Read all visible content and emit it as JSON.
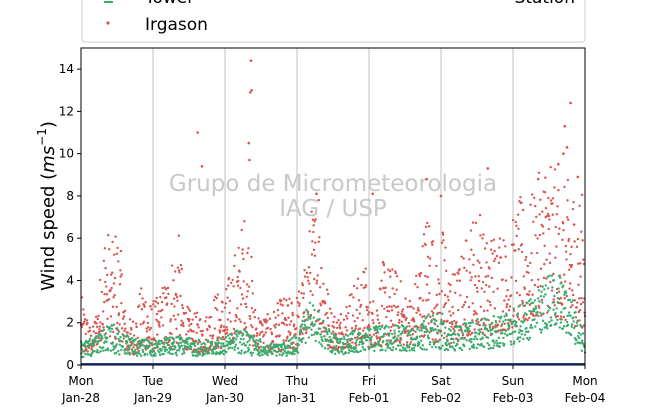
{
  "chart_data": {
    "type": "scatter",
    "title": "",
    "xlabel": "",
    "ylabel": "Wind speed (ms⁻¹)",
    "ylabel_parts": {
      "pre": "Wind speed (",
      "var": "ms",
      "sup": "−1",
      "post": ")"
    },
    "ylim": [
      0,
      15
    ],
    "xlim": [
      "2020-01-27",
      "2020-02-04"
    ],
    "yticks": [
      "0",
      "2",
      "4",
      "6",
      "8",
      "10",
      "12",
      "14"
    ],
    "xticks": [
      {
        "day": "Mon",
        "date": "Jan-28"
      },
      {
        "day": "Tue",
        "date": "Jan-29"
      },
      {
        "day": "Wed",
        "date": "Jan-30"
      },
      {
        "day": "Thu",
        "date": "Jan-31"
      },
      {
        "day": "Fri",
        "date": "Feb-01"
      },
      {
        "day": "Sat",
        "date": "Feb-02"
      },
      {
        "day": "Sun",
        "date": "Feb-03"
      },
      {
        "day": "Mon",
        "date": "Feb-04"
      }
    ],
    "grid": "vertical",
    "legend": {
      "position": "top",
      "entries": [
        "Tower",
        "Station",
        "Irgason"
      ]
    },
    "watermark": [
      "Grupo de Micrometeorologia",
      "IAG / USP"
    ],
    "series": [
      {
        "name": "Irgason",
        "color": "#d9534f",
        "marker": "dot",
        "profile": [
          [
            0.0,
            0.9,
            3.3
          ],
          [
            0.05,
            1.0,
            3.0
          ],
          [
            0.15,
            1.4,
            1.5
          ],
          [
            0.25,
            2.0,
            3.5
          ],
          [
            0.3,
            2.6,
            6.0
          ],
          [
            0.35,
            3.0,
            7.2
          ],
          [
            0.42,
            2.6,
            5.5
          ],
          [
            0.5,
            2.2,
            7.0
          ],
          [
            0.57,
            2.3,
            5.0
          ],
          [
            0.62,
            1.3,
            2.4
          ],
          [
            0.7,
            0.9,
            2.2
          ],
          [
            0.78,
            1.1,
            2.8
          ],
          [
            0.88,
            1.5,
            4.5
          ],
          [
            0.95,
            1.3,
            3.0
          ],
          [
            1.05,
            1.3,
            3.2
          ],
          [
            1.15,
            1.5,
            4.0
          ],
          [
            1.3,
            1.4,
            5.8
          ],
          [
            1.35,
            2.0,
            6.5
          ],
          [
            1.45,
            1.5,
            3.0
          ],
          [
            1.55,
            1.3,
            2.4
          ],
          [
            1.65,
            1.2,
            2.6
          ],
          [
            1.75,
            1.2,
            2.5
          ],
          [
            1.85,
            1.5,
            3.5
          ],
          [
            2.0,
            1.6,
            3.5
          ],
          [
            2.1,
            2.0,
            5.0
          ],
          [
            2.2,
            2.8,
            6.2
          ],
          [
            2.28,
            3.4,
            7.5
          ],
          [
            2.35,
            2.5,
            6.5
          ],
          [
            2.4,
            1.6,
            3.0
          ],
          [
            2.5,
            1.2,
            2.5
          ],
          [
            2.6,
            1.1,
            2.4
          ],
          [
            2.7,
            1.2,
            2.8
          ],
          [
            2.8,
            1.3,
            3.3
          ],
          [
            2.9,
            1.4,
            3.2
          ],
          [
            3.0,
            1.5,
            3.5
          ],
          [
            3.1,
            2.6,
            4.5
          ],
          [
            3.2,
            3.8,
            7.5
          ],
          [
            3.28,
            4.2,
            8.0
          ],
          [
            3.35,
            3.0,
            6.5
          ],
          [
            3.45,
            1.7,
            3.0
          ],
          [
            3.55,
            1.4,
            2.4
          ],
          [
            3.65,
            1.6,
            3.0
          ],
          [
            3.75,
            1.6,
            3.8
          ],
          [
            3.85,
            1.9,
            4.2
          ],
          [
            3.95,
            2.3,
            5.0
          ],
          [
            4.0,
            1.6,
            3.2
          ],
          [
            4.1,
            1.8,
            3.4
          ],
          [
            4.2,
            1.8,
            5.0
          ],
          [
            4.3,
            2.0,
            4.8
          ],
          [
            4.4,
            2.2,
            4.5
          ],
          [
            4.5,
            1.8,
            3.5
          ],
          [
            4.6,
            1.6,
            3.3
          ],
          [
            4.7,
            2.2,
            5.5
          ],
          [
            4.8,
            3.0,
            7.5
          ],
          [
            4.85,
            3.2,
            8.2
          ],
          [
            4.9,
            2.0,
            6.0
          ],
          [
            4.95,
            2.1,
            4.5
          ],
          [
            5.05,
            2.6,
            7.2
          ],
          [
            5.1,
            1.9,
            4.5
          ],
          [
            5.2,
            2.0,
            4.5
          ],
          [
            5.3,
            2.4,
            5.5
          ],
          [
            5.4,
            2.8,
            7.0
          ],
          [
            5.5,
            3.5,
            7.5
          ],
          [
            5.55,
            3.6,
            8.0
          ],
          [
            5.6,
            2.7,
            6.0
          ],
          [
            5.7,
            2.8,
            6.5
          ],
          [
            5.8,
            3.2,
            7.0
          ],
          [
            5.9,
            3.3,
            6.0
          ],
          [
            6.0,
            3.5,
            7.0
          ],
          [
            6.1,
            4.2,
            8.0
          ],
          [
            6.2,
            4.0,
            7.5
          ],
          [
            6.3,
            4.5,
            8.5
          ],
          [
            6.4,
            4.7,
            9.5
          ],
          [
            6.5,
            5.0,
            11.0
          ],
          [
            6.6,
            4.5,
            9.0
          ],
          [
            6.7,
            4.2,
            8.5
          ],
          [
            6.8,
            3.8,
            9.0
          ],
          [
            6.9,
            3.6,
            8.5
          ],
          [
            7.0,
            3.5,
            8.0
          ]
        ],
        "spikes": [
          [
            2.36,
            14.4
          ],
          [
            2.37,
            13.0
          ],
          [
            2.35,
            12.9
          ],
          [
            1.62,
            11.0
          ],
          [
            1.68,
            9.4
          ],
          [
            2.33,
            10.5
          ],
          [
            2.34,
            9.7
          ],
          [
            6.8,
            12.4
          ],
          [
            6.72,
            11.3
          ],
          [
            6.75,
            10.3
          ],
          [
            6.63,
            9.5
          ],
          [
            6.7,
            10.0
          ],
          [
            5.65,
            9.3
          ],
          [
            4.05,
            8.1
          ],
          [
            3.27,
            8.1
          ],
          [
            3.3,
            7.8
          ],
          [
            4.8,
            8.8
          ],
          [
            5.0,
            8.0
          ],
          [
            6.35,
            8.8
          ],
          [
            6.9,
            8.9
          ]
        ],
        "points": 1500
      },
      {
        "name": "Tower",
        "color": "#3aaa6d",
        "marker": "dot",
        "profile": [
          [
            0.0,
            0.8,
            0.6
          ],
          [
            0.1,
            0.8,
            0.5
          ],
          [
            0.2,
            0.9,
            0.6
          ],
          [
            0.3,
            1.1,
            0.7
          ],
          [
            0.4,
            1.3,
            0.8
          ],
          [
            0.5,
            1.2,
            0.9
          ],
          [
            0.6,
            1.0,
            0.6
          ],
          [
            0.8,
            0.8,
            0.5
          ],
          [
            1.0,
            0.8,
            0.5
          ],
          [
            1.2,
            0.9,
            0.5
          ],
          [
            1.4,
            0.9,
            0.6
          ],
          [
            1.6,
            0.8,
            0.5
          ],
          [
            1.8,
            0.8,
            0.5
          ],
          [
            2.0,
            0.9,
            0.5
          ],
          [
            2.2,
            1.2,
            0.8
          ],
          [
            2.4,
            0.9,
            0.6
          ],
          [
            2.6,
            0.7,
            0.4
          ],
          [
            2.8,
            0.7,
            0.4
          ],
          [
            3.0,
            1.0,
            0.6
          ],
          [
            3.1,
            1.7,
            0.9
          ],
          [
            3.2,
            2.2,
            1.1
          ],
          [
            3.3,
            1.8,
            1.0
          ],
          [
            3.4,
            1.3,
            0.7
          ],
          [
            3.5,
            1.0,
            0.6
          ],
          [
            3.6,
            0.9,
            0.5
          ],
          [
            3.8,
            1.1,
            0.7
          ],
          [
            4.0,
            1.2,
            0.7
          ],
          [
            4.2,
            1.3,
            0.8
          ],
          [
            4.4,
            1.3,
            0.8
          ],
          [
            4.6,
            1.2,
            0.7
          ],
          [
            4.8,
            1.6,
            1.1
          ],
          [
            4.9,
            1.7,
            1.1
          ],
          [
            5.0,
            1.6,
            1.1
          ],
          [
            5.2,
            1.3,
            0.8
          ],
          [
            5.4,
            1.4,
            0.9
          ],
          [
            5.6,
            1.5,
            1.0
          ],
          [
            5.8,
            1.6,
            1.0
          ],
          [
            6.0,
            1.8,
            1.1
          ],
          [
            6.2,
            2.1,
            1.2
          ],
          [
            6.4,
            2.6,
            1.4
          ],
          [
            6.5,
            3.0,
            1.6
          ],
          [
            6.6,
            3.1,
            1.6
          ],
          [
            6.7,
            2.8,
            1.5
          ],
          [
            6.8,
            2.5,
            1.4
          ],
          [
            6.9,
            1.6,
            1.0
          ],
          [
            7.0,
            1.0,
            0.6
          ]
        ],
        "spikes": [],
        "points": 1300
      },
      {
        "name": "Station",
        "color": "#1f3f8f",
        "marker": "line",
        "values": [
          0.05,
          0.05
        ]
      }
    ]
  }
}
